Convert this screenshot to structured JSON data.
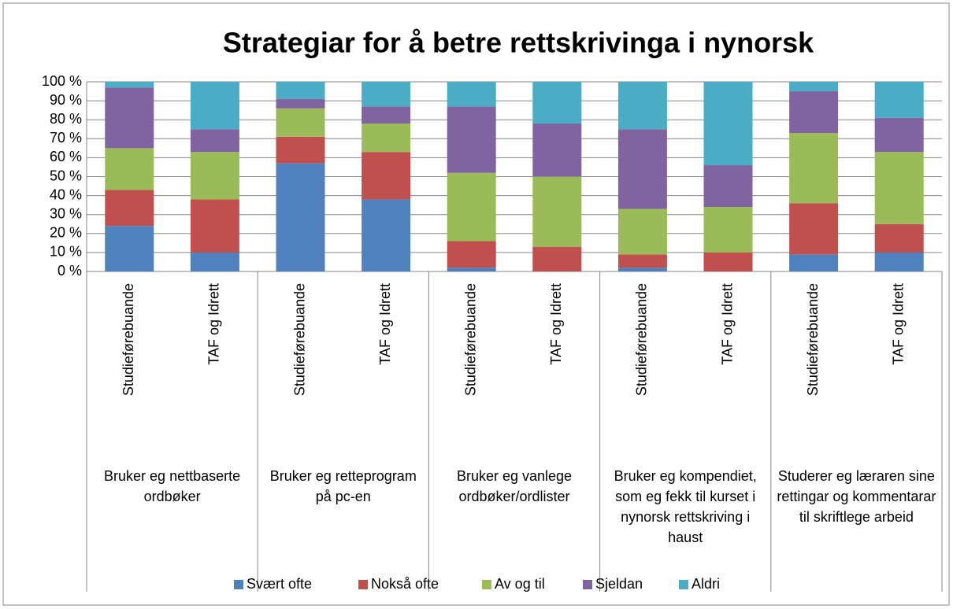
{
  "chart_data": {
    "type": "stacked_bar",
    "title": "Strategiar for å betre rettskrivinga i nynorsk",
    "categories": [
      "Studieførebuande",
      "TAF og Idrett",
      "Studieførebuande",
      "TAF og Idrett",
      "Studieførebuande",
      "TAF og Idrett",
      "Studieførebuande",
      "TAF og Idrett",
      "Studieførebuande",
      "TAF og Idrett"
    ],
    "groups": [
      "Bruker eg nettbaserte ordbøker",
      "Bruker eg retteprogram på pc-en",
      "Bruker eg vanlege ordbøker/ordlister",
      "Bruker eg kompendiet, som eg fekk til kurset i nynorsk rettskriving i haust",
      "Studerer eg læraren sine rettingar og kommentarar til skriftlege arbeid"
    ],
    "series": [
      {
        "name": "Svært ofte",
        "color": "#4f81bd",
        "values": [
          24,
          10,
          57,
          38,
          2,
          0,
          2,
          0,
          9,
          10
        ]
      },
      {
        "name": "Nokså ofte",
        "color": "#c0504d",
        "values": [
          19,
          28,
          14,
          25,
          14,
          13,
          7,
          10,
          27,
          15
        ]
      },
      {
        "name": "Av og til",
        "color": "#9bbb59",
        "values": [
          22,
          25,
          15,
          15,
          36,
          37,
          24,
          24,
          37,
          38
        ]
      },
      {
        "name": "Sjeldan",
        "color": "#8064a2",
        "values": [
          32,
          12,
          5,
          9,
          35,
          28,
          42,
          22,
          22,
          18
        ]
      },
      {
        "name": "Aldri",
        "color": "#4bacc6",
        "values": [
          3,
          25,
          9,
          13,
          13,
          22,
          25,
          44,
          5,
          19
        ]
      }
    ],
    "ylim": [
      0,
      100
    ],
    "yticks": [
      {
        "value": 0,
        "label": "0 %"
      },
      {
        "value": 10,
        "label": "10 %"
      },
      {
        "value": 20,
        "label": "20 %"
      },
      {
        "value": 30,
        "label": "30 %"
      },
      {
        "value": 40,
        "label": "40 %"
      },
      {
        "value": 50,
        "label": "50 %"
      },
      {
        "value": 60,
        "label": "60 %"
      },
      {
        "value": 70,
        "label": "70 %"
      },
      {
        "value": 80,
        "label": "80 %"
      },
      {
        "value": 90,
        "label": "90 %"
      },
      {
        "value": 100,
        "label": "100 %"
      }
    ],
    "grid": true,
    "legend": "bottom"
  }
}
